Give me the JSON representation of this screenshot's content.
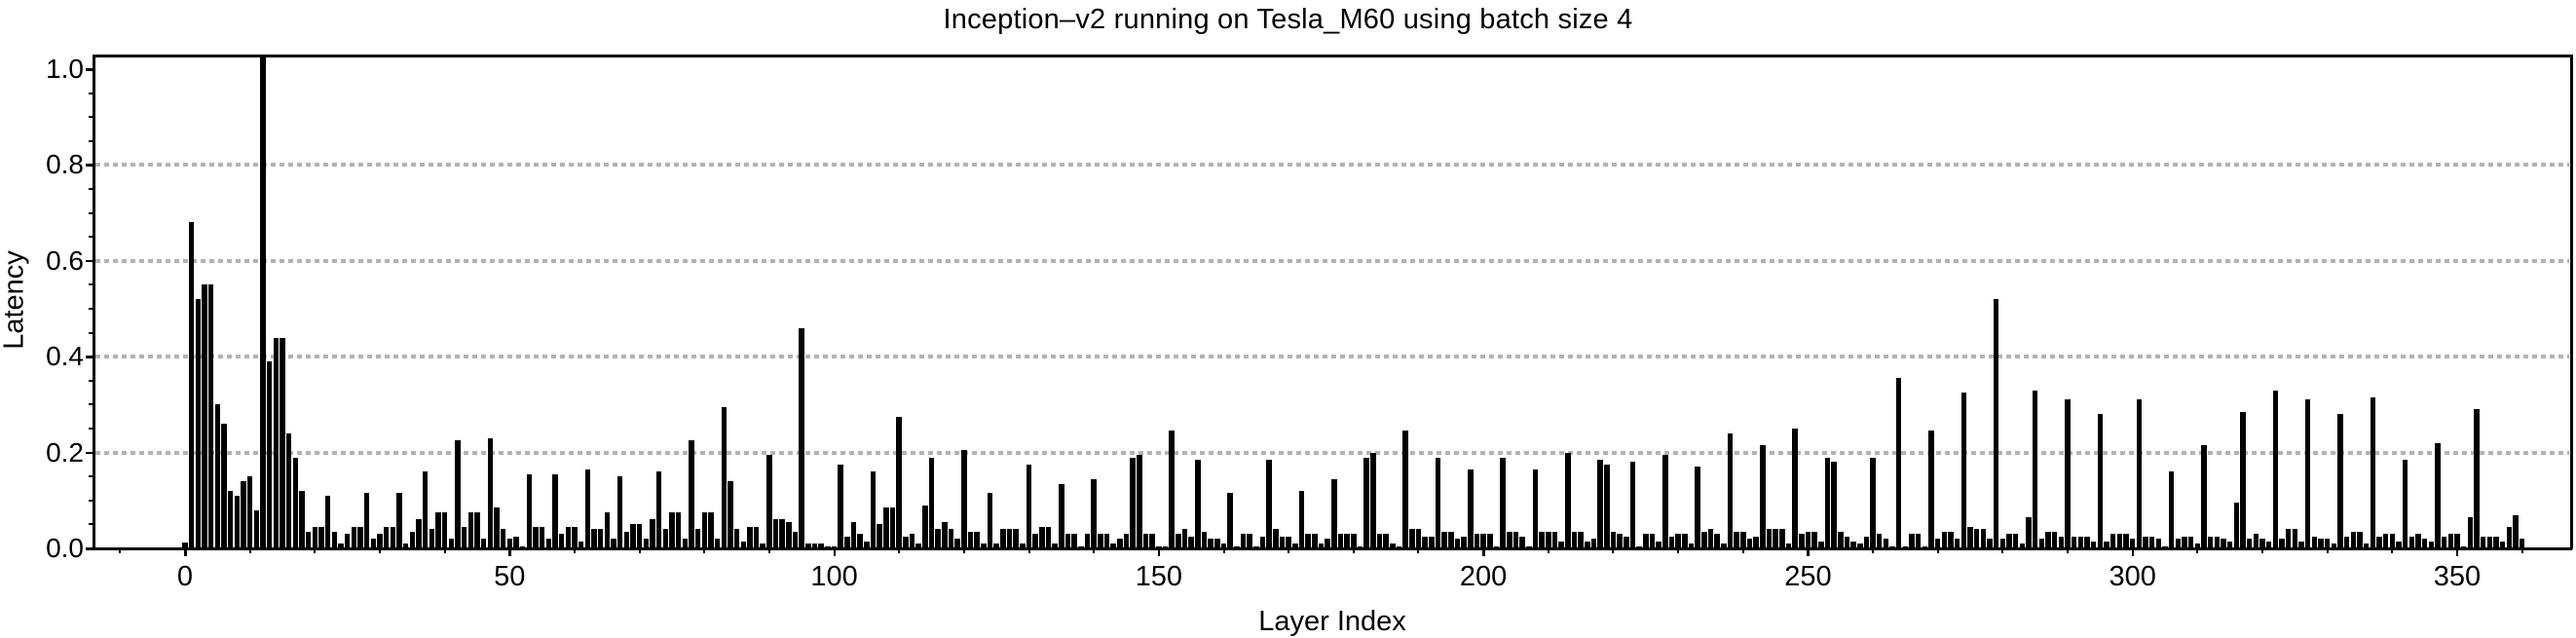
{
  "title": "Inception–v2 running on Tesla_M60 using batch size 4",
  "chart_data": {
    "type": "bar",
    "title": "Inception–v2 running on Tesla_M60 using batch size 4",
    "xlabel": "Layer Index",
    "ylabel": "Latency",
    "bar_color": "#000000",
    "grid_color": "#b3b3b3",
    "background_color": "#ffffff",
    "grid": "dotted horizontal lines at y-major ticks 0.2–0.8",
    "legend": "none",
    "xlim": [
      -14,
      367
    ],
    "ylim": [
      0,
      1.025
    ],
    "x_major_ticks": [
      0,
      50,
      100,
      150,
      200,
      250,
      300,
      350
    ],
    "x_tick_labels": [
      "0",
      "50",
      "100",
      "150",
      "200",
      "250",
      "300",
      "350"
    ],
    "x_minor_tick_step": 10,
    "y_major_ticks": [
      0.0,
      0.2,
      0.4,
      0.6,
      0.8,
      1.0
    ],
    "y_tick_labels": [
      "0.0",
      "0.2",
      "0.4",
      "0.6",
      "0.8",
      "1.0"
    ],
    "y_minor_tick_step": 0.05,
    "gridlines_at": [
      0.2,
      0.4,
      0.6,
      0.8
    ],
    "x_start_index": 0,
    "values": [
      0.012,
      0.68,
      0.52,
      0.55,
      0.55,
      0.3,
      0.26,
      0.12,
      0.11,
      0.14,
      0.15,
      0.08,
      1.03,
      0.39,
      0.44,
      0.44,
      0.24,
      0.19,
      0.12,
      0.035,
      0.045,
      0.045,
      0.11,
      0.035,
      0.01,
      0.03,
      0.045,
      0.045,
      0.115,
      0.02,
      0.03,
      0.045,
      0.045,
      0.115,
      0.01,
      0.035,
      0.06,
      0.16,
      0.04,
      0.075,
      0.075,
      0.02,
      0.225,
      0.045,
      0.075,
      0.075,
      0.02,
      0.23,
      0.085,
      0.04,
      0.02,
      0.025,
      0.005,
      0.155,
      0.045,
      0.045,
      0.02,
      0.155,
      0.03,
      0.045,
      0.045,
      0.015,
      0.165,
      0.04,
      0.04,
      0.075,
      0.02,
      0.15,
      0.035,
      0.05,
      0.05,
      0.02,
      0.06,
      0.16,
      0.04,
      0.075,
      0.075,
      0.02,
      0.225,
      0.04,
      0.075,
      0.075,
      0.02,
      0.295,
      0.14,
      0.04,
      0.015,
      0.045,
      0.045,
      0.01,
      0.195,
      0.06,
      0.06,
      0.055,
      0.035,
      0.46,
      0.01,
      0.01,
      0.01,
      0.005,
      0.005,
      0.175,
      0.025,
      0.055,
      0.03,
      0.015,
      0.16,
      0.05,
      0.085,
      0.085,
      0.275,
      0.025,
      0.03,
      0.01,
      0.09,
      0.19,
      0.04,
      0.055,
      0.04,
      0.02,
      0.205,
      0.035,
      0.035,
      0.01,
      0.115,
      0.01,
      0.04,
      0.04,
      0.04,
      0.01,
      0.175,
      0.03,
      0.045,
      0.045,
      0.01,
      0.135,
      0.03,
      0.03,
      0.005,
      0.03,
      0.145,
      0.03,
      0.03,
      0.01,
      0.02,
      0.03,
      0.19,
      0.195,
      0.03,
      0.03,
      0.005,
      0.005,
      0.245,
      0.03,
      0.04,
      0.025,
      0.185,
      0.035,
      0.02,
      0.02,
      0.01,
      0.115,
      0.005,
      0.03,
      0.03,
      0.005,
      0.025,
      0.185,
      0.04,
      0.025,
      0.025,
      0.01,
      0.12,
      0.03,
      0.03,
      0.01,
      0.02,
      0.145,
      0.03,
      0.03,
      0.03,
      0.005,
      0.19,
      0.2,
      0.03,
      0.03,
      0.01,
      0.005,
      0.245,
      0.04,
      0.04,
      0.025,
      0.025,
      0.19,
      0.035,
      0.035,
      0.02,
      0.025,
      0.165,
      0.03,
      0.03,
      0.03,
      0.005,
      0.19,
      0.035,
      0.035,
      0.025,
      0.005,
      0.165,
      0.035,
      0.035,
      0.035,
      0.015,
      0.2,
      0.035,
      0.035,
      0.015,
      0.02,
      0.185,
      0.175,
      0.035,
      0.03,
      0.025,
      0.18,
      0.005,
      0.03,
      0.03,
      0.015,
      0.195,
      0.025,
      0.03,
      0.03,
      0.01,
      0.17,
      0.035,
      0.04,
      0.03,
      0.01,
      0.24,
      0.035,
      0.035,
      0.02,
      0.025,
      0.215,
      0.04,
      0.04,
      0.04,
      0.01,
      0.25,
      0.03,
      0.035,
      0.035,
      0.015,
      0.19,
      0.18,
      0.035,
      0.025,
      0.015,
      0.01,
      0.025,
      0.19,
      0.03,
      0.02,
      0.005,
      0.355,
      0.005,
      0.03,
      0.03,
      0.005,
      0.245,
      0.02,
      0.035,
      0.035,
      0.02,
      0.325,
      0.045,
      0.04,
      0.04,
      0.02,
      0.52,
      0.02,
      0.03,
      0.03,
      0.01,
      0.065,
      0.33,
      0.02,
      0.035,
      0.035,
      0.025,
      0.31,
      0.025,
      0.025,
      0.025,
      0.015,
      0.28,
      0.015,
      0.03,
      0.03,
      0.03,
      0.02,
      0.31,
      0.025,
      0.025,
      0.02,
      0.005,
      0.16,
      0.02,
      0.025,
      0.025,
      0.01,
      0.215,
      0.025,
      0.025,
      0.02,
      0.015,
      0.095,
      0.285,
      0.02,
      0.03,
      0.02,
      0.015,
      0.33,
      0.02,
      0.04,
      0.04,
      0.015,
      0.31,
      0.025,
      0.02,
      0.02,
      0.01,
      0.28,
      0.025,
      0.035,
      0.035,
      0.01,
      0.315,
      0.025,
      0.03,
      0.03,
      0.015,
      0.185,
      0.025,
      0.03,
      0.02,
      0.015,
      0.22,
      0.025,
      0.03,
      0.03,
      0.005,
      0.065,
      0.29,
      0.025,
      0.025,
      0.025,
      0.015,
      0.045,
      0.07,
      0.02
    ]
  }
}
